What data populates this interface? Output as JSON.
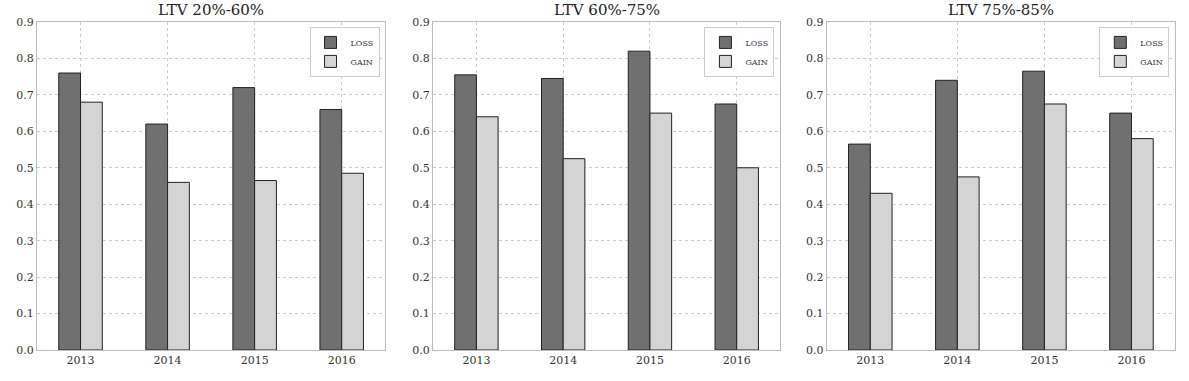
{
  "chart_data": [
    {
      "type": "bar",
      "title": "LTV 20%-60%",
      "categories": [
        "2013",
        "2014",
        "2015",
        "2016"
      ],
      "series": [
        {
          "name": "LOSS",
          "color": "#707070",
          "values": [
            0.76,
            0.62,
            0.72,
            0.66
          ]
        },
        {
          "name": "GAIN",
          "color": "#d4d4d4",
          "values": [
            0.68,
            0.46,
            0.465,
            0.485
          ]
        }
      ],
      "ylim": [
        0,
        0.9
      ],
      "yticks": [
        {
          "value": 0,
          "label": "0.0"
        },
        0.1,
        0.2,
        0.3,
        0.4,
        0.5,
        0.6,
        0.7,
        0.8,
        0.9
      ],
      "grid": true,
      "legend": "upper right"
    },
    {
      "type": "bar",
      "title": "LTV 60%-75%",
      "categories": [
        "2013",
        "2014",
        "2015",
        "2016"
      ],
      "series": [
        {
          "name": "LOSS",
          "color": "#707070",
          "values": [
            0.755,
            0.745,
            0.82,
            0.675
          ]
        },
        {
          "name": "GAIN",
          "color": "#d4d4d4",
          "values": [
            0.64,
            0.525,
            0.65,
            0.5
          ]
        }
      ],
      "ylim": [
        0,
        0.9
      ],
      "yticks": [
        {
          "value": 0,
          "label": "0.0"
        },
        0.1,
        0.2,
        0.3,
        0.4,
        0.5,
        0.6,
        0.7,
        0.8,
        0.9
      ],
      "grid": true,
      "legend": "upper right"
    },
    {
      "type": "bar",
      "title": "LTV 75%-85%",
      "categories": [
        "2013",
        "2014",
        "2015",
        "2016"
      ],
      "series": [
        {
          "name": "LOSS",
          "color": "#707070",
          "values": [
            0.565,
            0.74,
            0.765,
            0.65
          ]
        },
        {
          "name": "GAIN",
          "color": "#d4d4d4",
          "values": [
            0.43,
            0.475,
            0.675,
            0.58
          ]
        }
      ],
      "ylim": [
        0,
        0.9
      ],
      "yticks": [
        {
          "value": 0,
          "label": "0.0"
        },
        0.1,
        0.2,
        0.3,
        0.4,
        0.5,
        0.6,
        0.7,
        0.8,
        0.9
      ],
      "grid": true,
      "legend": "upper right"
    }
  ]
}
